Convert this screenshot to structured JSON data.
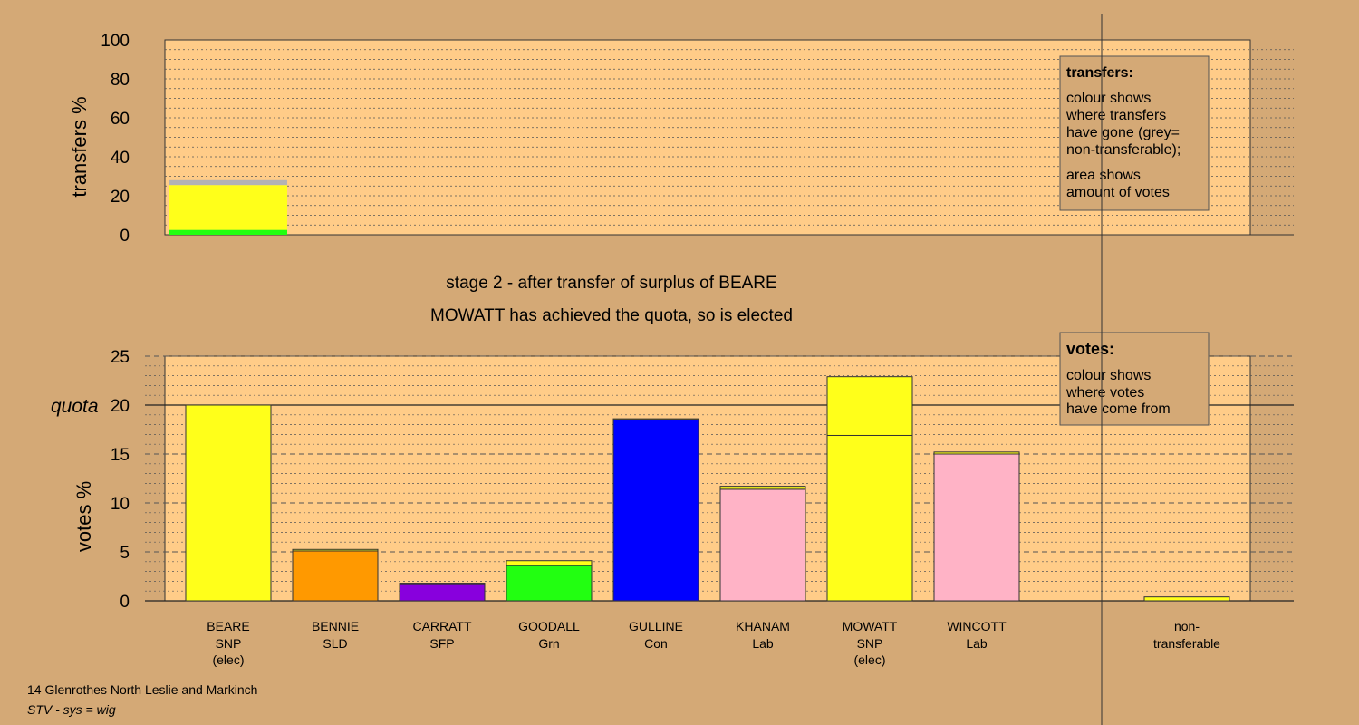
{
  "colors": {
    "background": "#d4a976",
    "plot_area": "#ffcc88",
    "legend_box": "#d4a976",
    "snp": "#ffff1a",
    "sld": "#ff9900",
    "sfp": "#8800dd",
    "grn": "#22ff11",
    "con": "#0000ff",
    "lab": "#ffb3c6",
    "nontransferable": "#b3b3b3"
  },
  "titles": {
    "stage": "stage 2 - after transfer of surplus of BEARE",
    "result": "MOWATT has achieved the quota, so is elected"
  },
  "footer": {
    "ward": "14 Glenrothes North Leslie and Markinch",
    "system": "STV - sys = wig"
  },
  "transfers_legend": {
    "title": "transfers:",
    "lines1": [
      "colour shows",
      "where transfers",
      "have gone (grey=",
      "non-transferable);"
    ],
    "lines2": [
      "area shows",
      "amount of votes"
    ]
  },
  "votes_legend": {
    "title": "votes:",
    "lines": [
      "colour shows",
      "where votes",
      "have come from"
    ]
  },
  "chart_data": [
    {
      "type": "bar",
      "ylabel": "transfers %",
      "ylim": [
        0,
        100
      ],
      "yticks": [
        0,
        20,
        40,
        60,
        80,
        100
      ],
      "grid": true,
      "stack": [
        {
          "name": "grn",
          "value": 2.5
        },
        {
          "name": "snp",
          "value": 23
        },
        {
          "name": "nontransferable",
          "value": 2.5
        }
      ]
    },
    {
      "type": "bar",
      "ylabel": "votes %",
      "ylim": [
        0,
        25
      ],
      "yticks": [
        0,
        5,
        10,
        15,
        20,
        25
      ],
      "quota": 20,
      "quota_label": "quota",
      "grid": true,
      "candidates": [
        {
          "name": "BEARE",
          "party": "SNP",
          "status": "(elec)",
          "base_color": "snp",
          "base": 20,
          "transfer": 0
        },
        {
          "name": "BENNIE",
          "party": "SLD",
          "status": "",
          "base_color": "sld",
          "base": 5.1,
          "transfer": 0.15
        },
        {
          "name": "CARRATT",
          "party": "SFP",
          "status": "",
          "base_color": "sfp",
          "base": 1.75,
          "transfer": 0.05
        },
        {
          "name": "GOODALL",
          "party": "Grn",
          "status": "",
          "base_color": "grn",
          "base": 3.6,
          "transfer": 0.5
        },
        {
          "name": "GULLINE",
          "party": "Con",
          "status": "",
          "base_color": "con",
          "base": 18.5,
          "transfer": 0.1
        },
        {
          "name": "KHANAM",
          "party": "Lab",
          "status": "",
          "base_color": "lab",
          "base": 11.4,
          "transfer": 0.3
        },
        {
          "name": "MOWATT",
          "party": "SNP",
          "status": "(elec)",
          "base_color": "snp",
          "base": 16.9,
          "transfer": 6
        },
        {
          "name": "WINCOTT",
          "party": "Lab",
          "status": "",
          "base_color": "lab",
          "base": 15,
          "transfer": 0.2
        }
      ],
      "nontransferable": {
        "label1": "non-",
        "label2": "transferable",
        "value": 0.4,
        "color": "snp"
      }
    }
  ]
}
